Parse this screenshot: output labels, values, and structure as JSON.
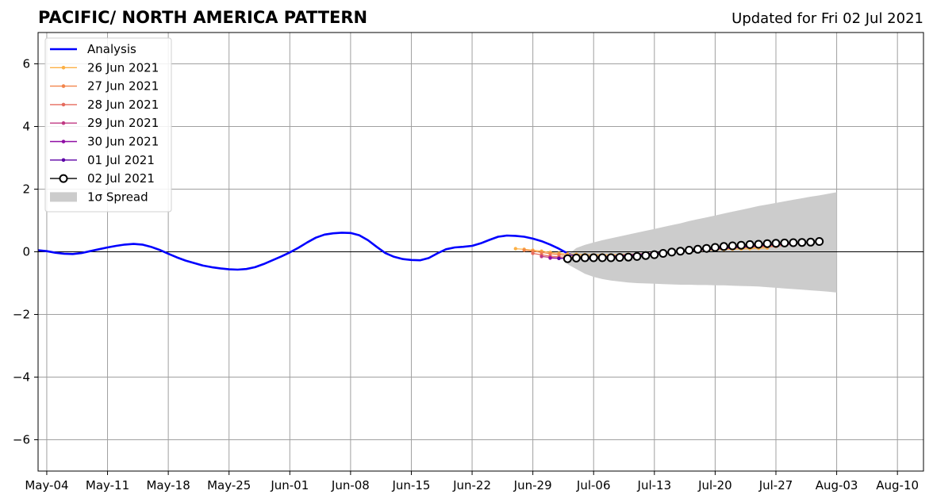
{
  "header": {
    "title": "PACIFIC/ NORTH AMERICA PATTERN",
    "updated": "Updated for Fri 02 Jul 2021"
  },
  "chart_data": {
    "type": "line",
    "xlim": [
      "2021-05-03",
      "2021-08-13"
    ],
    "ylim": [
      -7,
      7
    ],
    "grid": true,
    "legend_position": "top-left",
    "x_ticks": [
      "2021-05-04",
      "2021-05-11",
      "2021-05-18",
      "2021-05-25",
      "2021-06-01",
      "2021-06-08",
      "2021-06-15",
      "2021-06-22",
      "2021-06-29",
      "2021-07-06",
      "2021-07-13",
      "2021-07-20",
      "2021-07-27",
      "2021-08-03",
      "2021-08-10"
    ],
    "x_tick_labels": [
      "May-04",
      "May-11",
      "May-18",
      "May-25",
      "Jun-01",
      "Jun-08",
      "Jun-15",
      "Jun-22",
      "Jun-29",
      "Jul-06",
      "Jul-13",
      "Jul-20",
      "Jul-27",
      "Aug-03",
      "Aug-10"
    ],
    "y_ticks": [
      -6,
      -4,
      -2,
      0,
      2,
      4,
      6
    ],
    "y_tick_labels": [
      "−6",
      "−4",
      "−2",
      "0",
      "2",
      "4",
      "6"
    ],
    "analysis": {
      "name": "Analysis",
      "color": "#0000ff",
      "start": "2021-05-03",
      "values": [
        0.05,
        0.02,
        -0.03,
        -0.06,
        -0.07,
        -0.04,
        0.02,
        0.08,
        0.14,
        0.19,
        0.23,
        0.25,
        0.23,
        0.16,
        0.06,
        -0.06,
        -0.18,
        -0.28,
        -0.36,
        -0.44,
        -0.49,
        -0.53,
        -0.56,
        -0.57,
        -0.55,
        -0.49,
        -0.39,
        -0.27,
        -0.15,
        -0.02,
        0.13,
        0.3,
        0.45,
        0.55,
        0.59,
        0.61,
        0.6,
        0.53,
        0.37,
        0.16,
        -0.04,
        -0.16,
        -0.23,
        -0.26,
        -0.27,
        -0.2,
        -0.05,
        0.08,
        0.14,
        0.16,
        0.19,
        0.27,
        0.38,
        0.48,
        0.52,
        0.51,
        0.48,
        0.42,
        0.34,
        0.23,
        0.1,
        -0.05,
        -0.15,
        -0.2,
        -0.22
      ]
    },
    "forecasts": [
      {
        "name": "26 Jun 2021",
        "color": "#fcb045",
        "start": "2021-06-27",
        "values": [
          0.1,
          0.08,
          0.05,
          0.02,
          -0.02,
          -0.05,
          -0.07,
          -0.08,
          -0.09,
          -0.1,
          -0.1,
          -0.1,
          -0.09,
          -0.08,
          -0.07,
          -0.05,
          -0.04,
          -0.02,
          0,
          0.01,
          0.03,
          0.04,
          0.05,
          0.06,
          0.07,
          0.08,
          0.09,
          0.1,
          0.11,
          0.12
        ]
      },
      {
        "name": "27 Jun 2021",
        "color": "#f2844b",
        "start": "2021-06-28",
        "values": [
          0.05,
          0.02,
          -0.02,
          -0.06,
          -0.09,
          -0.12,
          -0.14,
          -0.15,
          -0.15,
          -0.15,
          -0.14,
          -0.13,
          -0.11,
          -0.09,
          -0.07,
          -0.05,
          -0.03,
          -0.01,
          0.01,
          0.03,
          0.05,
          0.07,
          0.09,
          0.1,
          0.12,
          0.13,
          0.14,
          0.15,
          0.16,
          0.17
        ]
      },
      {
        "name": "28 Jun 2021",
        "color": "#e56b5d",
        "start": "2021-06-29",
        "values": [
          -0.05,
          -0.1,
          -0.14,
          -0.16,
          -0.18,
          -0.19,
          -0.19,
          -0.19,
          -0.18,
          -0.16,
          -0.14,
          -0.12,
          -0.1,
          -0.08,
          -0.06,
          -0.04,
          -0.02,
          0,
          0.02,
          0.04,
          0.06,
          0.08,
          0.1,
          0.12,
          0.14,
          0.15,
          0.17,
          0.18,
          0.19,
          0.2
        ]
      },
      {
        "name": "29 Jun 2021",
        "color": "#c03a83",
        "start": "2021-06-30",
        "values": [
          -0.15,
          -0.18,
          -0.2,
          -0.21,
          -0.21,
          -0.2,
          -0.19,
          -0.17,
          -0.15,
          -0.13,
          -0.11,
          -0.09,
          -0.07,
          -0.05,
          -0.03,
          -0.01,
          0.01,
          0.03,
          0.05,
          0.07,
          0.09,
          0.11,
          0.13,
          0.15,
          0.17,
          0.19,
          0.21,
          0.22,
          0.23,
          0.24
        ]
      },
      {
        "name": "30 Jun 2021",
        "color": "#8f0da4",
        "start": "2021-07-01",
        "values": [
          -0.2,
          -0.21,
          -0.21,
          -0.2,
          -0.19,
          -0.18,
          -0.16,
          -0.14,
          -0.12,
          -0.1,
          -0.08,
          -0.06,
          -0.04,
          -0.02,
          0,
          0.02,
          0.04,
          0.06,
          0.08,
          0.1,
          0.12,
          0.14,
          0.16,
          0.18,
          0.2,
          0.22,
          0.24,
          0.26,
          0.27,
          0.28
        ]
      },
      {
        "name": "01 Jul 2021",
        "color": "#5c01a6",
        "start": "2021-07-02",
        "values": [
          -0.21,
          -0.21,
          -0.2,
          -0.19,
          -0.18,
          -0.17,
          -0.15,
          -0.13,
          -0.11,
          -0.09,
          -0.07,
          -0.05,
          -0.03,
          -0.01,
          0.01,
          0.03,
          0.05,
          0.07,
          0.09,
          0.11,
          0.13,
          0.15,
          0.17,
          0.19,
          0.21,
          0.23,
          0.25,
          0.27,
          0.29,
          0.3
        ]
      },
      {
        "name": "02 Jul 2021",
        "color": "#000000",
        "start": "2021-07-03",
        "values": [
          -0.22,
          -0.2,
          -0.19,
          -0.19,
          -0.19,
          -0.19,
          -0.18,
          -0.17,
          -0.15,
          -0.12,
          -0.09,
          -0.05,
          -0.01,
          0.02,
          0.05,
          0.08,
          0.11,
          0.14,
          0.17,
          0.19,
          0.21,
          0.23,
          0.24,
          0.26,
          0.27,
          0.28,
          0.29,
          0.3,
          0.31,
          0.33
        ]
      }
    ],
    "spread": {
      "name": "1σ Spread",
      "color": "#cccccc",
      "start": "2021-07-03",
      "upper": [
        -0.1,
        0.12,
        0.22,
        0.3,
        0.37,
        0.43,
        0.49,
        0.55,
        0.61,
        0.67,
        0.73,
        0.79,
        0.85,
        0.91,
        0.98,
        1.04,
        1.1,
        1.16,
        1.22,
        1.28,
        1.34,
        1.4,
        1.46,
        1.51,
        1.56,
        1.61,
        1.66,
        1.71,
        1.76,
        1.8,
        1.85,
        1.9
      ],
      "lower": [
        -0.4,
        -0.55,
        -0.7,
        -0.8,
        -0.87,
        -0.92,
        -0.95,
        -0.98,
        -1.0,
        -1.01,
        -1.02,
        -1.03,
        -1.04,
        -1.05,
        -1.05,
        -1.06,
        -1.06,
        -1.07,
        -1.07,
        -1.08,
        -1.09,
        -1.1,
        -1.11,
        -1.13,
        -1.15,
        -1.17,
        -1.19,
        -1.21,
        -1.23,
        -1.25,
        -1.27,
        -1.3
      ]
    }
  }
}
